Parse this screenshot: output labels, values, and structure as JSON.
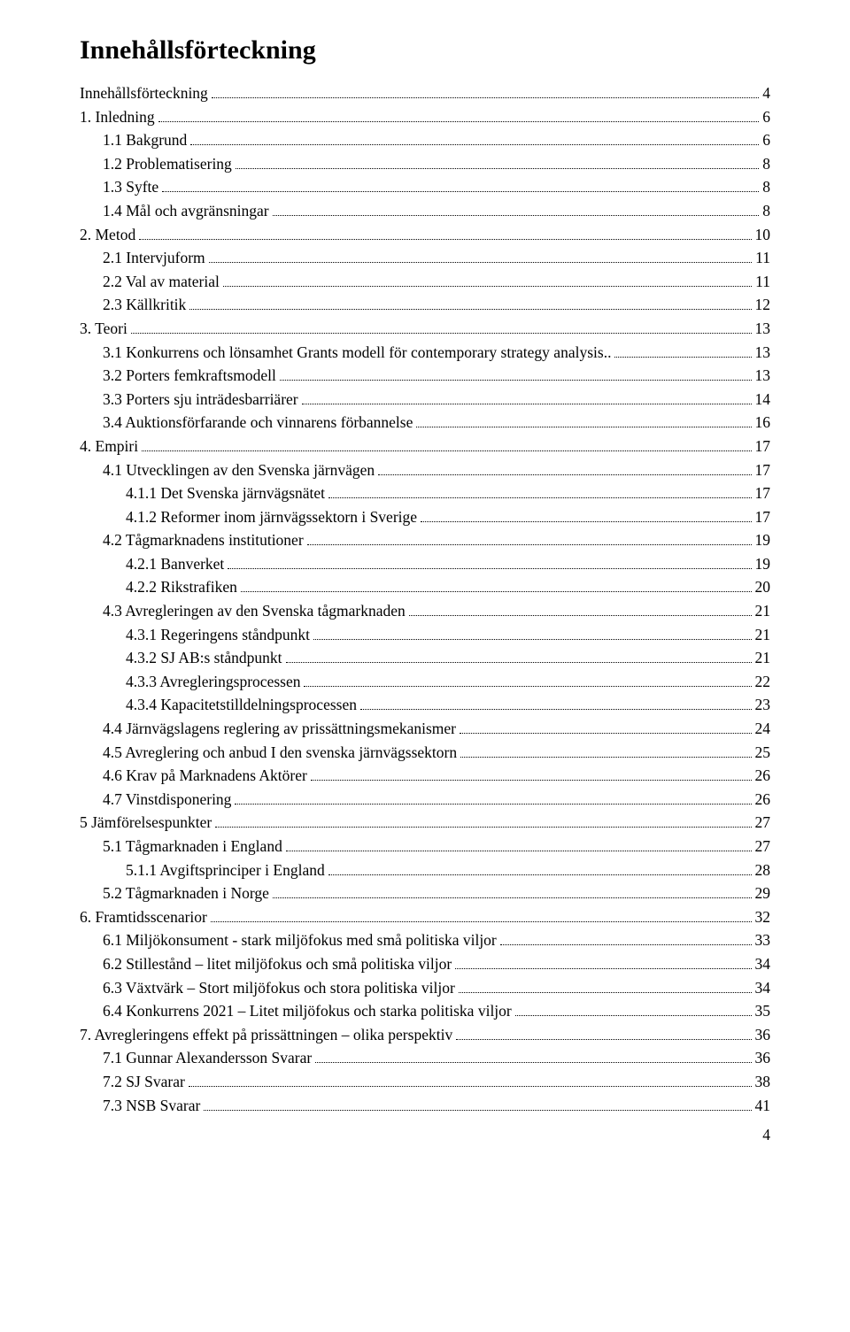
{
  "title": "Innehållsförteckning",
  "page_number": "4",
  "entries": [
    {
      "indent": 0,
      "label": "Innehållsförteckning",
      "page": "4"
    },
    {
      "indent": 0,
      "label": "1. Inledning",
      "page": "6"
    },
    {
      "indent": 1,
      "label": "1.1 Bakgrund",
      "page": "6"
    },
    {
      "indent": 1,
      "label": "1.2 Problematisering",
      "page": "8"
    },
    {
      "indent": 1,
      "label": "1.3 Syfte",
      "page": "8"
    },
    {
      "indent": 1,
      "label": "1.4 Mål och avgränsningar",
      "page": "8"
    },
    {
      "indent": 0,
      "label": "2. Metod",
      "page": "10"
    },
    {
      "indent": 1,
      "label": "2.1 Intervjuform",
      "page": "11"
    },
    {
      "indent": 1,
      "label": "2.2 Val av material",
      "page": "11"
    },
    {
      "indent": 1,
      "label": "2.3 Källkritik",
      "page": "12"
    },
    {
      "indent": 0,
      "label": "3. Teori",
      "page": "13"
    },
    {
      "indent": 1,
      "label": "3.1 Konkurrens och lönsamhet Grants modell för contemporary strategy analysis..",
      "page": "13"
    },
    {
      "indent": 1,
      "label": "3.2 Porters femkraftsmodell",
      "page": "13"
    },
    {
      "indent": 1,
      "label": "3.3 Porters sju inträdesbarriärer",
      "page": "14"
    },
    {
      "indent": 1,
      "label": "3.4 Auktionsförfarande och vinnarens förbannelse",
      "page": "16"
    },
    {
      "indent": 0,
      "label": "4. Empiri",
      "page": "17"
    },
    {
      "indent": 1,
      "label": "4.1 Utvecklingen av den Svenska järnvägen",
      "page": "17"
    },
    {
      "indent": 2,
      "label": "4.1.1 Det Svenska järnvägsnätet",
      "page": "17"
    },
    {
      "indent": 2,
      "label": "4.1.2 Reformer inom järnvägssektorn i Sverige",
      "page": "17"
    },
    {
      "indent": 1,
      "label": "4.2 Tågmarknadens institutioner",
      "page": "19"
    },
    {
      "indent": 2,
      "label": "4.2.1 Banverket",
      "page": "19"
    },
    {
      "indent": 2,
      "label": "4.2.2 Rikstrafiken",
      "page": "20"
    },
    {
      "indent": 1,
      "label": "4.3 Avregleringen av den Svenska tågmarknaden",
      "page": "21"
    },
    {
      "indent": 2,
      "label": "4.3.1 Regeringens ståndpunkt",
      "page": "21"
    },
    {
      "indent": 2,
      "label": "4.3.2 SJ AB:s ståndpunkt",
      "page": "21"
    },
    {
      "indent": 2,
      "label": "4.3.3 Avregleringsprocessen",
      "page": "22"
    },
    {
      "indent": 2,
      "label": "4.3.4 Kapacitetstilldelningsprocessen",
      "page": "23"
    },
    {
      "indent": 1,
      "label": "4.4 Järnvägslagens reglering av prissättningsmekanismer",
      "page": "24"
    },
    {
      "indent": 1,
      "label": "4.5 Avreglering och anbud I den svenska järnvägssektorn",
      "page": "25"
    },
    {
      "indent": 1,
      "label": "4.6 Krav på Marknadens Aktörer",
      "page": "26"
    },
    {
      "indent": 1,
      "label": "4.7 Vinstdisponering",
      "page": "26"
    },
    {
      "indent": 0,
      "label": "5 Jämförelsespunkter",
      "page": "27"
    },
    {
      "indent": 1,
      "label": "5.1 Tågmarknaden i England",
      "page": "27"
    },
    {
      "indent": 2,
      "label": "5.1.1 Avgiftsprinciper i England",
      "page": "28"
    },
    {
      "indent": 1,
      "label": "5.2 Tågmarknaden i Norge",
      "page": "29"
    },
    {
      "indent": 0,
      "label": "6. Framtidsscenarior",
      "page": "32"
    },
    {
      "indent": 1,
      "label": "6.1 Miljökonsument - stark miljöfokus med små politiska viljor",
      "page": "33"
    },
    {
      "indent": 1,
      "label": "6.2 Stillestånd – litet miljöfokus och små politiska viljor",
      "page": "34"
    },
    {
      "indent": 1,
      "label": "6.3 Växtvärk – Stort miljöfokus och stora politiska viljor",
      "page": "34"
    },
    {
      "indent": 1,
      "label": "6.4 Konkurrens 2021 – Litet miljöfokus och starka politiska viljor",
      "page": "35"
    },
    {
      "indent": 0,
      "label": "7. Avregleringens effekt på prissättningen – olika perspektiv",
      "page": "36"
    },
    {
      "indent": 1,
      "label": "7.1 Gunnar Alexandersson Svarar",
      "page": "36"
    },
    {
      "indent": 1,
      "label": "7.2 SJ Svarar",
      "page": "38"
    },
    {
      "indent": 1,
      "label": "7.3 NSB Svarar",
      "page": "41"
    }
  ]
}
